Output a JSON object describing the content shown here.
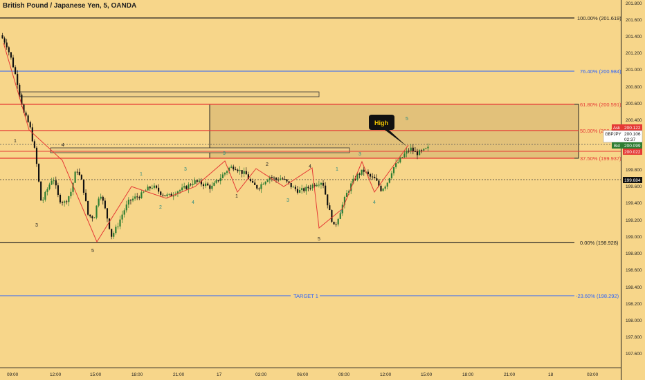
{
  "chart_title": "British Pound / Japanese Yen, 5, OANDA",
  "colors": {
    "background": "#f7d68a",
    "candle_up": "#2e7d32",
    "candle_down": "#111111",
    "fib_blue": "#2962ff",
    "fib_red": "#e53935",
    "zigzag": "#e53935",
    "wave_label": "#2a8a80",
    "zone_fill": "#e3c27c"
  },
  "price_axis": {
    "labels": [
      "201.800",
      "201.600",
      "201.400",
      "201.200",
      "201.000",
      "200.800",
      "200.600",
      "200.400",
      "199.800",
      "199.600",
      "199.400",
      "199.200",
      "199.000",
      "198.800",
      "198.600",
      "198.400",
      "198.200",
      "198.000",
      "197.800",
      "197.600"
    ]
  },
  "time_axis": {
    "labels": [
      "09:00",
      "12:00",
      "15:00",
      "18:00",
      "21:00",
      "17",
      "03:00",
      "06:00",
      "09:00",
      "12:00",
      "15:00",
      "18:00",
      "21:00",
      "18",
      "03:00"
    ]
  },
  "price_tags": {
    "ask_label": "Ask",
    "ask_value": "200.122",
    "symbol": "GBPJPY",
    "last_value": "200.106",
    "countdown": "02:37",
    "bid_label": "Bid",
    "bid_value": "200.099",
    "red_value": "200.022",
    "level_value": "199.684"
  },
  "fib_levels": [
    {
      "label": "100.00% (201.619)",
      "price": 201.619,
      "color": "#222222"
    },
    {
      "label": "76.40% (200.984)",
      "price": 200.984,
      "color": "#2962ff"
    },
    {
      "label": "61.80% (200.591)",
      "price": 200.591,
      "color": "#e53935"
    },
    {
      "label": "50.00% (200.2",
      "price": 200.274,
      "color": "#e53935"
    },
    {
      "label": "37.50% (199.937)",
      "price": 199.937,
      "color": "#e53935"
    },
    {
      "label": "0.00% (198.928)",
      "price": 198.928,
      "color": "#222222"
    },
    {
      "label": "-23.60% (198.292)",
      "price": 198.292,
      "color": "#2962ff"
    }
  ],
  "target_label": "TARGET 1",
  "callout": "High",
  "wave_labels": {
    "black": [
      "1",
      "3",
      "4",
      "5",
      "2",
      "4",
      "5",
      "1"
    ],
    "teal": [
      "1",
      "2",
      "3",
      "4",
      "3",
      "1",
      "2",
      "3",
      "4",
      "5",
      "2"
    ]
  },
  "chart_data": {
    "type": "candlestick",
    "title": "British Pound / Japanese Yen, 5, OANDA",
    "symbol": "GBPJPY",
    "timeframe": "5",
    "source": "OANDA",
    "ylim": [
      197.45,
      201.93
    ],
    "x_ticks": [
      "09:00",
      "12:00",
      "15:00",
      "18:00",
      "21:00",
      "17",
      "03:00",
      "06:00",
      "09:00",
      "12:00",
      "15:00",
      "18:00",
      "21:00",
      "18",
      "03:00"
    ],
    "series": [
      {
        "name": "GBPJPY",
        "close_path": [
          [
            0,
            201.5
          ],
          [
            1,
            201.4
          ],
          [
            2,
            201.18
          ],
          [
            3,
            200.9
          ],
          [
            4,
            200.55
          ],
          [
            5,
            200.4
          ],
          [
            6,
            200.05
          ],
          [
            7,
            199.45
          ],
          [
            8,
            199.62
          ],
          [
            9,
            199.78
          ],
          [
            10,
            199.5
          ],
          [
            11,
            199.46
          ],
          [
            12,
            199.58
          ],
          [
            13,
            199.88
          ],
          [
            14,
            199.7
          ],
          [
            15,
            199.3
          ],
          [
            16,
            199.28
          ],
          [
            17,
            199.6
          ],
          [
            18,
            199.35
          ],
          [
            19,
            199.05
          ],
          [
            20,
            199.18
          ],
          [
            21,
            199.35
          ],
          [
            22,
            199.48
          ],
          [
            23,
            199.52
          ],
          [
            24,
            199.55
          ],
          [
            25,
            199.62
          ],
          [
            26,
            199.66
          ],
          [
            27,
            199.6
          ],
          [
            28,
            199.55
          ],
          [
            29,
            199.54
          ],
          [
            30,
            199.6
          ],
          [
            31,
            199.62
          ],
          [
            32,
            199.66
          ],
          [
            33,
            199.72
          ],
          [
            34,
            199.7
          ],
          [
            35,
            199.68
          ],
          [
            36,
            199.64
          ],
          [
            37,
            199.72
          ],
          [
            38,
            199.8
          ],
          [
            39,
            199.88
          ],
          [
            40,
            199.9
          ],
          [
            41,
            199.84
          ],
          [
            42,
            199.8
          ],
          [
            43,
            199.68
          ],
          [
            44,
            199.64
          ],
          [
            45,
            199.72
          ],
          [
            46,
            199.78
          ],
          [
            47,
            199.74
          ],
          [
            48,
            199.76
          ],
          [
            49,
            199.7
          ],
          [
            50,
            199.64
          ],
          [
            51,
            199.6
          ],
          [
            52,
            199.62
          ],
          [
            53,
            199.66
          ],
          [
            54,
            199.7
          ],
          [
            55,
            199.72
          ],
          [
            56,
            199.4
          ],
          [
            57,
            199.15
          ],
          [
            58,
            199.35
          ],
          [
            59,
            199.55
          ],
          [
            60,
            199.7
          ],
          [
            61,
            199.8
          ],
          [
            62,
            199.85
          ],
          [
            63,
            199.78
          ],
          [
            64,
            199.74
          ],
          [
            65,
            199.62
          ],
          [
            66,
            199.7
          ],
          [
            67,
            199.88
          ],
          [
            68,
            199.96
          ],
          [
            69,
            200.05
          ],
          [
            70,
            200.12
          ],
          [
            71,
            200.06
          ],
          [
            72,
            200.08
          ],
          [
            73,
            200.12
          ]
        ]
      }
    ],
    "annotations": {
      "fibonacci": [
        {
          "ratio": "100.00%",
          "price": 201.619
        },
        {
          "ratio": "76.40%",
          "price": 200.984
        },
        {
          "ratio": "61.80%",
          "price": 200.591
        },
        {
          "ratio": "50.00%",
          "price": 200.274
        },
        {
          "ratio": "37.50%",
          "price": 199.937
        },
        {
          "ratio": "0.00%",
          "price": 198.928
        },
        {
          "ratio": "-23.60%",
          "price": 198.292
        }
      ],
      "horizontal_lines": [
        199.684
      ],
      "text": [
        "TARGET 1",
        "High"
      ]
    },
    "grid": false
  }
}
